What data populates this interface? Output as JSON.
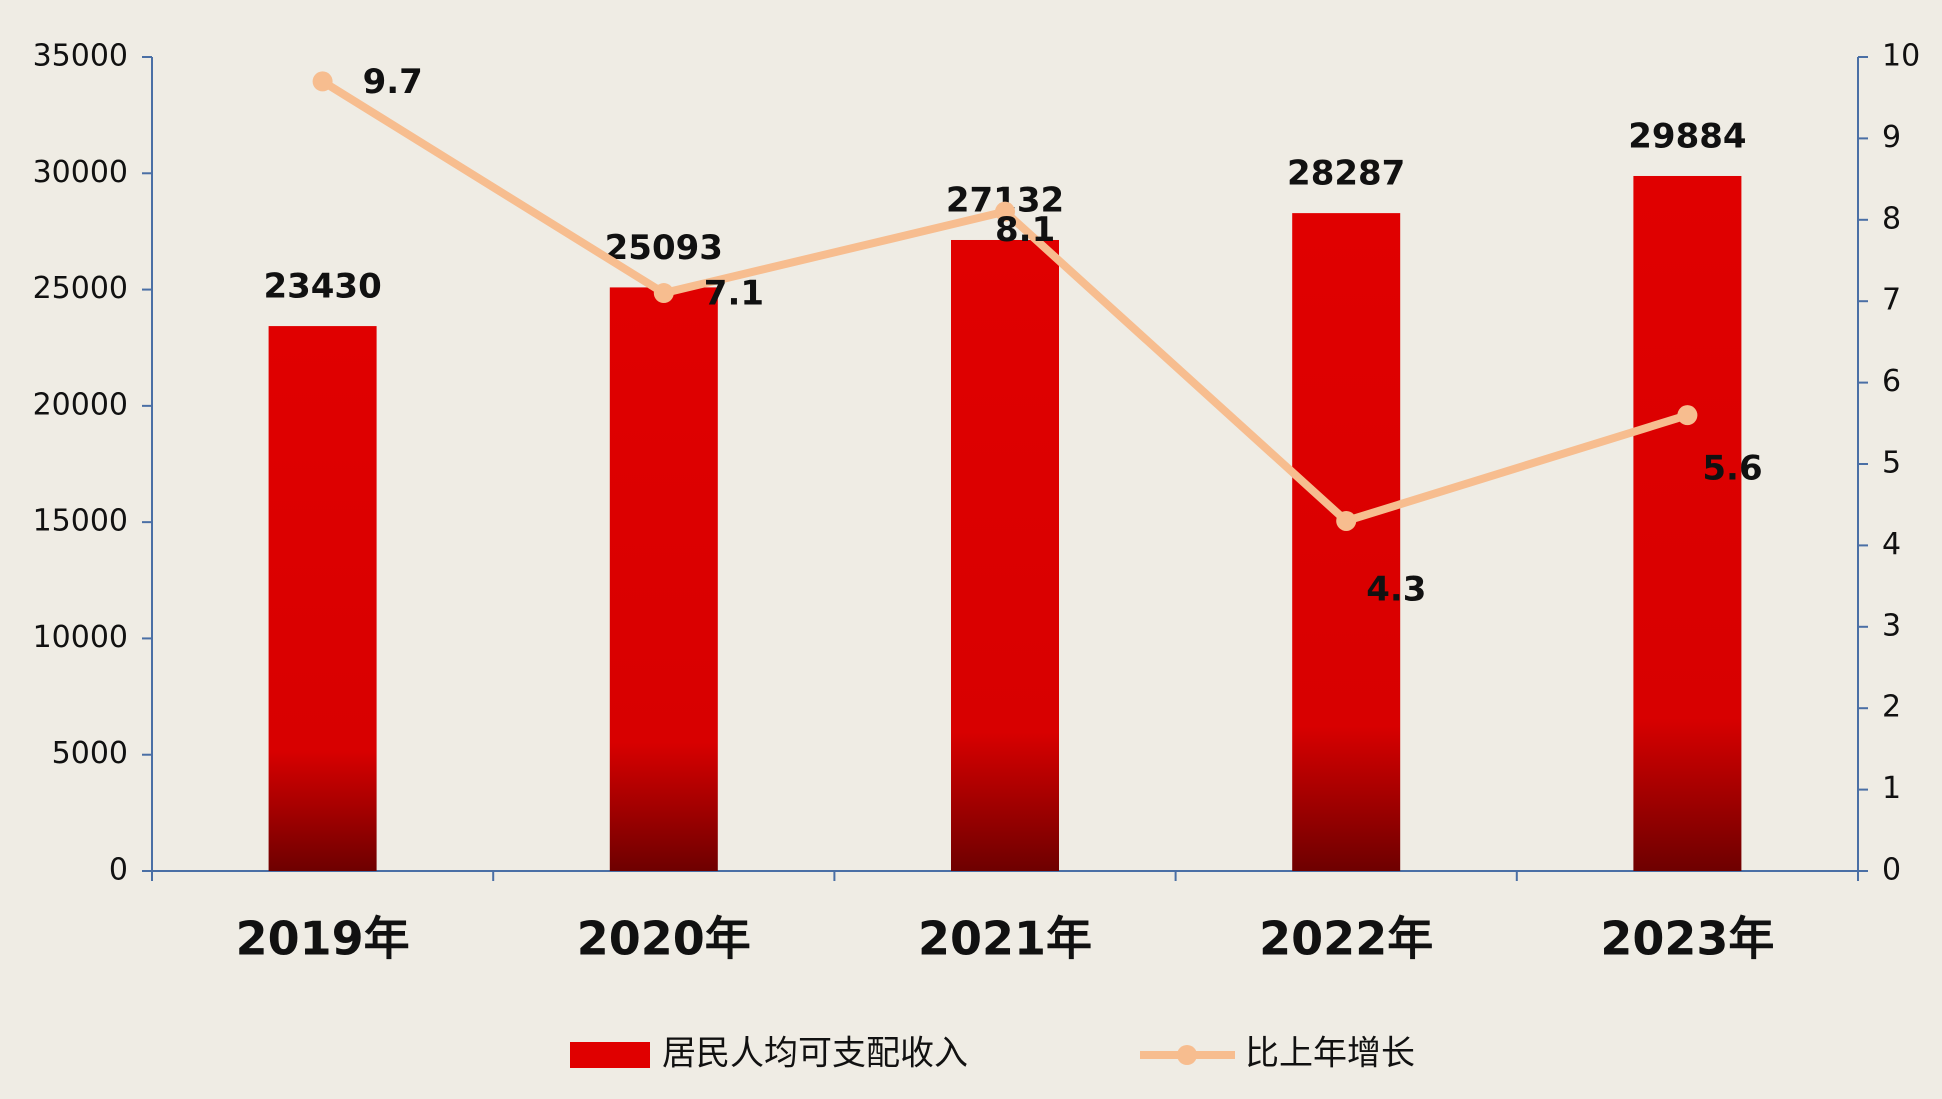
{
  "chart_data": {
    "type": "bar",
    "categories": [
      "2019年",
      "2020年",
      "2021年",
      "2022年",
      "2023年"
    ],
    "series": [
      {
        "name": "居民人均可支配收入",
        "type": "bar",
        "color": "#e00000",
        "values": [
          23430,
          25093,
          27132,
          28287,
          29884
        ]
      },
      {
        "name": "比上年增长",
        "type": "line",
        "axis": "y2",
        "color": "#f7bd8f",
        "values": [
          9.7,
          7.1,
          8.1,
          4.3,
          5.6
        ]
      }
    ],
    "ylim": [
      0,
      35000
    ],
    "yticks": [
      0,
      5000,
      10000,
      15000,
      20000,
      25000,
      30000,
      35000
    ],
    "y2lim": [
      0,
      10
    ],
    "y2ticks": [
      0,
      1,
      2,
      3,
      4,
      5,
      6,
      7,
      8,
      9,
      10
    ],
    "grid": false,
    "legend": "bottom"
  }
}
